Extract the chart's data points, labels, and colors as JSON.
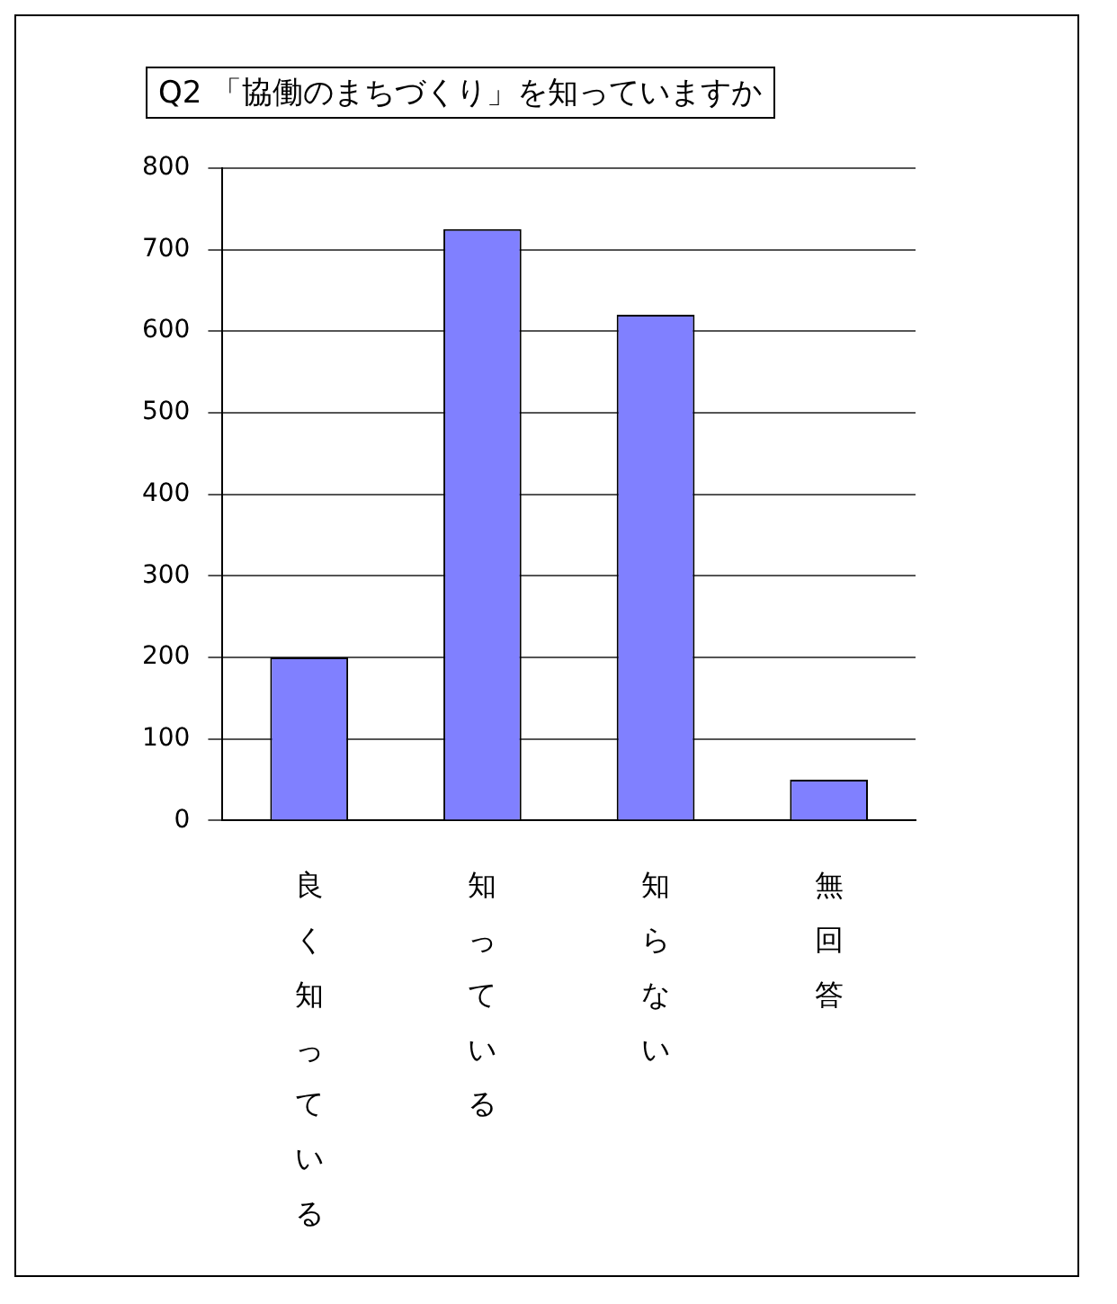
{
  "chart_data": {
    "type": "bar",
    "title": "Q2 「協働のまちづくり」を知っていますか",
    "categories": [
      "良く知っている",
      "知っている",
      "知らない",
      "無回答"
    ],
    "values": [
      200,
      725,
      620,
      50
    ],
    "color": "#8080ff",
    "ylim": [
      0,
      800
    ],
    "yticks": [
      0,
      100,
      200,
      300,
      400,
      500,
      600,
      700,
      800
    ],
    "grid": "y",
    "legend": false
  }
}
